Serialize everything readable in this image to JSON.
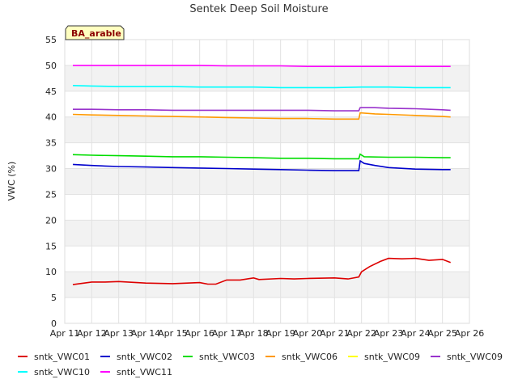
{
  "chart_data": {
    "type": "line",
    "title": "Sentek Deep Soil Moisture",
    "xlabel": "",
    "ylabel": "VWC (%)",
    "ylim": [
      0,
      55
    ],
    "xlim": [
      11,
      26
    ],
    "yticks": [
      0,
      5,
      10,
      15,
      20,
      25,
      30,
      35,
      40,
      45,
      50,
      55
    ],
    "xticks": [
      {
        "v": 11,
        "label": "Apr 11"
      },
      {
        "v": 12,
        "label": "Apr 12"
      },
      {
        "v": 13,
        "label": "Apr 13"
      },
      {
        "v": 14,
        "label": "Apr 14"
      },
      {
        "v": 15,
        "label": "Apr 15"
      },
      {
        "v": 16,
        "label": "Apr 16"
      },
      {
        "v": 17,
        "label": "Apr 17"
      },
      {
        "v": 18,
        "label": "Apr 18"
      },
      {
        "v": 19,
        "label": "Apr 19"
      },
      {
        "v": 20,
        "label": "Apr 20"
      },
      {
        "v": 21,
        "label": "Apr 21"
      },
      {
        "v": 22,
        "label": "Apr 22"
      },
      {
        "v": 23,
        "label": "Apr 23"
      },
      {
        "v": 24,
        "label": "Apr 24"
      },
      {
        "v": 25,
        "label": "Apr 25"
      },
      {
        "v": 26,
        "label": "Apr 26"
      }
    ],
    "annotation": "BA_arable",
    "grid": true,
    "legend_position": "bottom",
    "series": [
      {
        "name": "sntk_VWC01",
        "color": "#dd0000",
        "x": [
          11.3,
          12,
          12.5,
          13,
          14,
          15,
          16,
          16.3,
          16.6,
          17,
          17.5,
          18,
          18.2,
          19,
          19.5,
          20,
          21,
          21.5,
          21.9,
          22.0,
          22.3,
          22.7,
          23,
          23.5,
          24,
          24.5,
          25,
          25.3
        ],
        "y": [
          7.5,
          8.0,
          8.0,
          8.1,
          7.8,
          7.7,
          7.9,
          7.6,
          7.6,
          8.4,
          8.4,
          8.8,
          8.5,
          8.7,
          8.6,
          8.7,
          8.8,
          8.6,
          9.0,
          10.0,
          11.0,
          12.0,
          12.6,
          12.5,
          12.6,
          12.2,
          12.4,
          11.8
        ]
      },
      {
        "name": "sntk_VWC02",
        "color": "#0000cc",
        "x": [
          11.3,
          12,
          12.5,
          13,
          14,
          15,
          16,
          17,
          18,
          19,
          20,
          21,
          21.9,
          21.95,
          22.1,
          22.5,
          23,
          24,
          25,
          25.3
        ],
        "y": [
          30.8,
          30.6,
          30.5,
          30.4,
          30.3,
          30.2,
          30.1,
          30.0,
          29.9,
          29.8,
          29.7,
          29.6,
          29.6,
          31.5,
          31.0,
          30.6,
          30.2,
          29.9,
          29.8,
          29.8
        ]
      },
      {
        "name": "sntk_VWC03",
        "color": "#00dd00",
        "x": [
          11.3,
          12,
          13,
          14,
          15,
          16,
          17,
          18,
          19,
          20,
          21,
          21.9,
          21.95,
          22.1,
          23,
          24,
          25,
          25.3
        ],
        "y": [
          32.7,
          32.6,
          32.5,
          32.4,
          32.3,
          32.3,
          32.2,
          32.1,
          32.0,
          32.0,
          31.9,
          31.9,
          32.8,
          32.3,
          32.2,
          32.2,
          32.1,
          32.1
        ]
      },
      {
        "name": "sntk_VWC06",
        "color": "#ff9900",
        "x": [
          11.3,
          12,
          13,
          14,
          15,
          16,
          17,
          18,
          19,
          20,
          21,
          21.9,
          21.95,
          22.5,
          23,
          24,
          25,
          25.3
        ],
        "y": [
          40.5,
          40.4,
          40.3,
          40.2,
          40.1,
          40.0,
          39.9,
          39.8,
          39.7,
          39.7,
          39.6,
          39.6,
          40.8,
          40.6,
          40.5,
          40.3,
          40.1,
          40.0
        ]
      },
      {
        "name": "sntk_VWC09",
        "color": "#ffff00",
        "x": [],
        "y": []
      },
      {
        "name": "sntk_VWC09",
        "color": "#9933cc",
        "x": [
          11.3,
          12,
          13,
          14,
          15,
          16,
          17,
          18,
          19,
          20,
          21,
          21.9,
          21.95,
          22.5,
          23,
          24,
          25,
          25.3
        ],
        "y": [
          41.5,
          41.5,
          41.4,
          41.4,
          41.3,
          41.3,
          41.3,
          41.3,
          41.3,
          41.3,
          41.2,
          41.2,
          41.8,
          41.8,
          41.7,
          41.6,
          41.4,
          41.3
        ]
      },
      {
        "name": "sntk_VWC10",
        "color": "#00ffff",
        "x": [
          11.3,
          12,
          13,
          14,
          15,
          16,
          17,
          18,
          19,
          20,
          21,
          22,
          23,
          24,
          25,
          25.3
        ],
        "y": [
          46.1,
          46.0,
          45.9,
          45.9,
          45.9,
          45.8,
          45.8,
          45.8,
          45.7,
          45.7,
          45.7,
          45.8,
          45.8,
          45.7,
          45.7,
          45.7
        ]
      },
      {
        "name": "sntk_VWC11",
        "color": "#ff00ff",
        "x": [
          11.3,
          12,
          13,
          14,
          15,
          16,
          17,
          17.5,
          18,
          19,
          20,
          21,
          22,
          23,
          24,
          25,
          25.3
        ],
        "y": [
          50.0,
          50.0,
          50.0,
          50.0,
          50.0,
          50.0,
          49.9,
          49.9,
          49.9,
          49.9,
          49.8,
          49.8,
          49.8,
          49.8,
          49.8,
          49.8,
          49.8
        ]
      }
    ]
  }
}
